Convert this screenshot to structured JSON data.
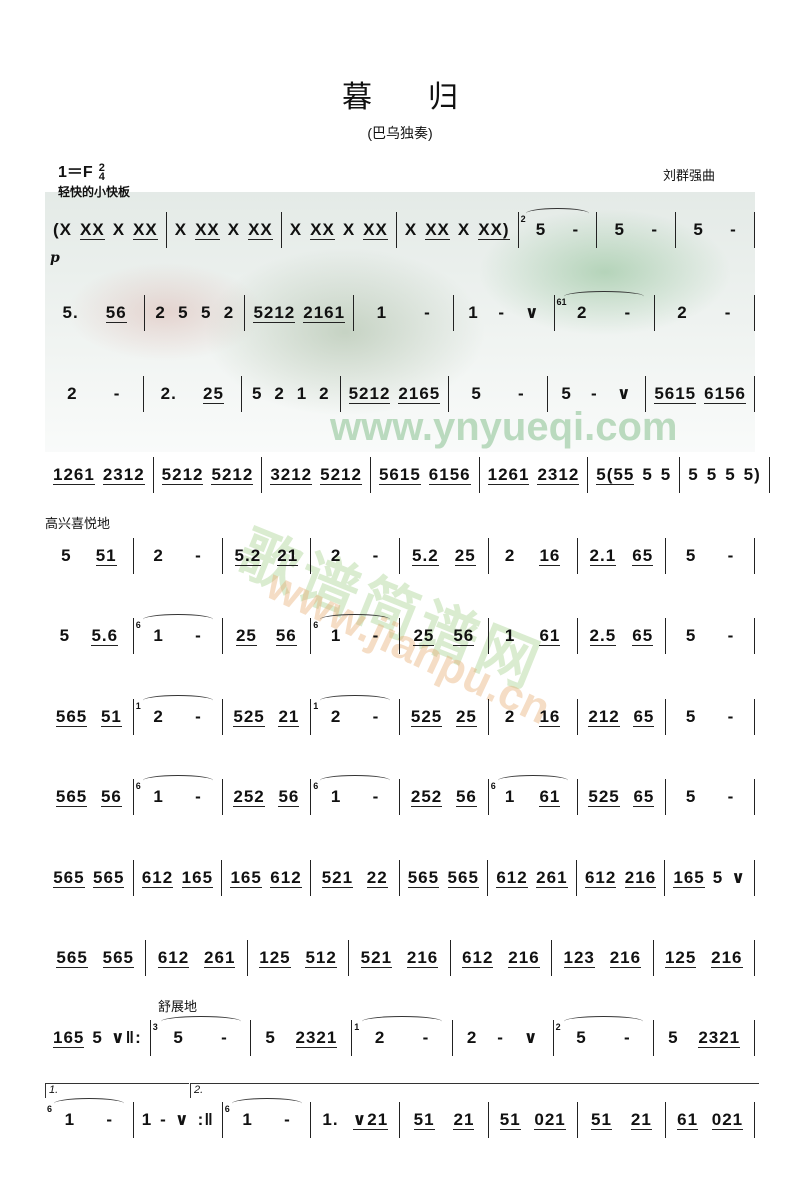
{
  "title": "暮归",
  "subtitle": "(巴乌独奏)",
  "key": "1＝F",
  "time_signature": {
    "top": "2",
    "bottom": "4"
  },
  "tempo": "轻快的小快板",
  "composer": "刘群强曲",
  "dynamic": "p",
  "expressions": {
    "happy": "高兴喜悦地",
    "relaxed": "舒展地"
  },
  "voltas": [
    "1.",
    "2."
  ],
  "watermarks": [
    "www.ynyueqi.com",
    "歌谱简谱网",
    "www.jianpu.cn"
  ],
  "rows": [
    [
      {
        "n": "(X XX X XX"
      },
      {
        "n": "X XX X XX"
      },
      {
        "n": "X XX X XX"
      },
      {
        "n": "X XX X XX)"
      },
      {
        "g": "2",
        "n": "5 -"
      },
      {
        "n": "5 -"
      },
      {
        "n": "5 -"
      }
    ],
    [
      {
        "n": "5. 56"
      },
      {
        "n": "2 5 5 2"
      },
      {
        "n": "5212 2161"
      },
      {
        "n": "1 -"
      },
      {
        "n": "1 - ∨"
      },
      {
        "g": "61",
        "n": "2 -"
      },
      {
        "n": "2 -"
      }
    ],
    [
      {
        "n": "2 -"
      },
      {
        "n": "2. 25"
      },
      {
        "n": "5 2 1 2"
      },
      {
        "n": "5212 2165"
      },
      {
        "n": "5 -"
      },
      {
        "n": "5 - ∨"
      },
      {
        "n": "5615 6156"
      }
    ],
    [
      {
        "n": "1261 2312"
      },
      {
        "n": "5212 5212"
      },
      {
        "n": "3212 5212"
      },
      {
        "n": "5615 6156"
      },
      {
        "n": "1261 2312"
      },
      {
        "n": "5(55 5 5"
      },
      {
        "n": "5 5 5 5)"
      }
    ],
    [
      {
        "n": "5 51"
      },
      {
        "n": "2 -"
      },
      {
        "n": "5.2 21"
      },
      {
        "n": "2 -"
      },
      {
        "n": "5.2 25"
      },
      {
        "n": "2 16"
      },
      {
        "n": "2.1 65"
      },
      {
        "n": "5 -"
      }
    ],
    [
      {
        "n": "5 5.6"
      },
      {
        "g": "6",
        "n": "1 -"
      },
      {
        "n": "25 56"
      },
      {
        "g": "6",
        "n": "1 -"
      },
      {
        "n": "25 56"
      },
      {
        "n": "1 61"
      },
      {
        "n": "2.5 65"
      },
      {
        "n": "5 -"
      }
    ],
    [
      {
        "n": "565 51"
      },
      {
        "g": "1",
        "n": "2 -"
      },
      {
        "n": "525 21"
      },
      {
        "g": "1",
        "n": "2 -"
      },
      {
        "n": "525 25"
      },
      {
        "n": "2 16"
      },
      {
        "n": "212 65"
      },
      {
        "n": "5 -"
      }
    ],
    [
      {
        "n": "565 56"
      },
      {
        "g": "6",
        "n": "1 -"
      },
      {
        "n": "252 56"
      },
      {
        "g": "6",
        "n": "1 -"
      },
      {
        "n": "252 56"
      },
      {
        "g": "6",
        "n": "1 61"
      },
      {
        "n": "525 65"
      },
      {
        "n": "5 -"
      }
    ],
    [
      {
        "n": "565 565"
      },
      {
        "n": "612 165"
      },
      {
        "n": "165 612"
      },
      {
        "n": "521 22"
      },
      {
        "n": "565 565"
      },
      {
        "n": "612 261"
      },
      {
        "n": "612 216"
      },
      {
        "n": "165 5 ∨"
      }
    ],
    [
      {
        "n": "565 565"
      },
      {
        "n": "612 261"
      },
      {
        "n": "125 512"
      },
      {
        "n": "521 216"
      },
      {
        "n": "612 216"
      },
      {
        "n": "123 216"
      },
      {
        "n": "125 216"
      }
    ],
    [
      {
        "n": "165 5 ∨‖:"
      },
      {
        "g": "3",
        "n": "5 -"
      },
      {
        "n": "5 2321"
      },
      {
        "g": "1",
        "n": "2 -"
      },
      {
        "n": "2 - ∨"
      },
      {
        "g": "2",
        "n": "5 -"
      },
      {
        "n": "5 2321"
      }
    ],
    [
      {
        "g": "6",
        "n": "1 -"
      },
      {
        "n": "1 - ∨ :‖"
      },
      {
        "g": "6",
        "n": "1 -"
      },
      {
        "n": "1. ∨21"
      },
      {
        "n": "51 21"
      },
      {
        "n": "51 021"
      },
      {
        "n": "51 21"
      },
      {
        "n": "61 021"
      }
    ]
  ]
}
